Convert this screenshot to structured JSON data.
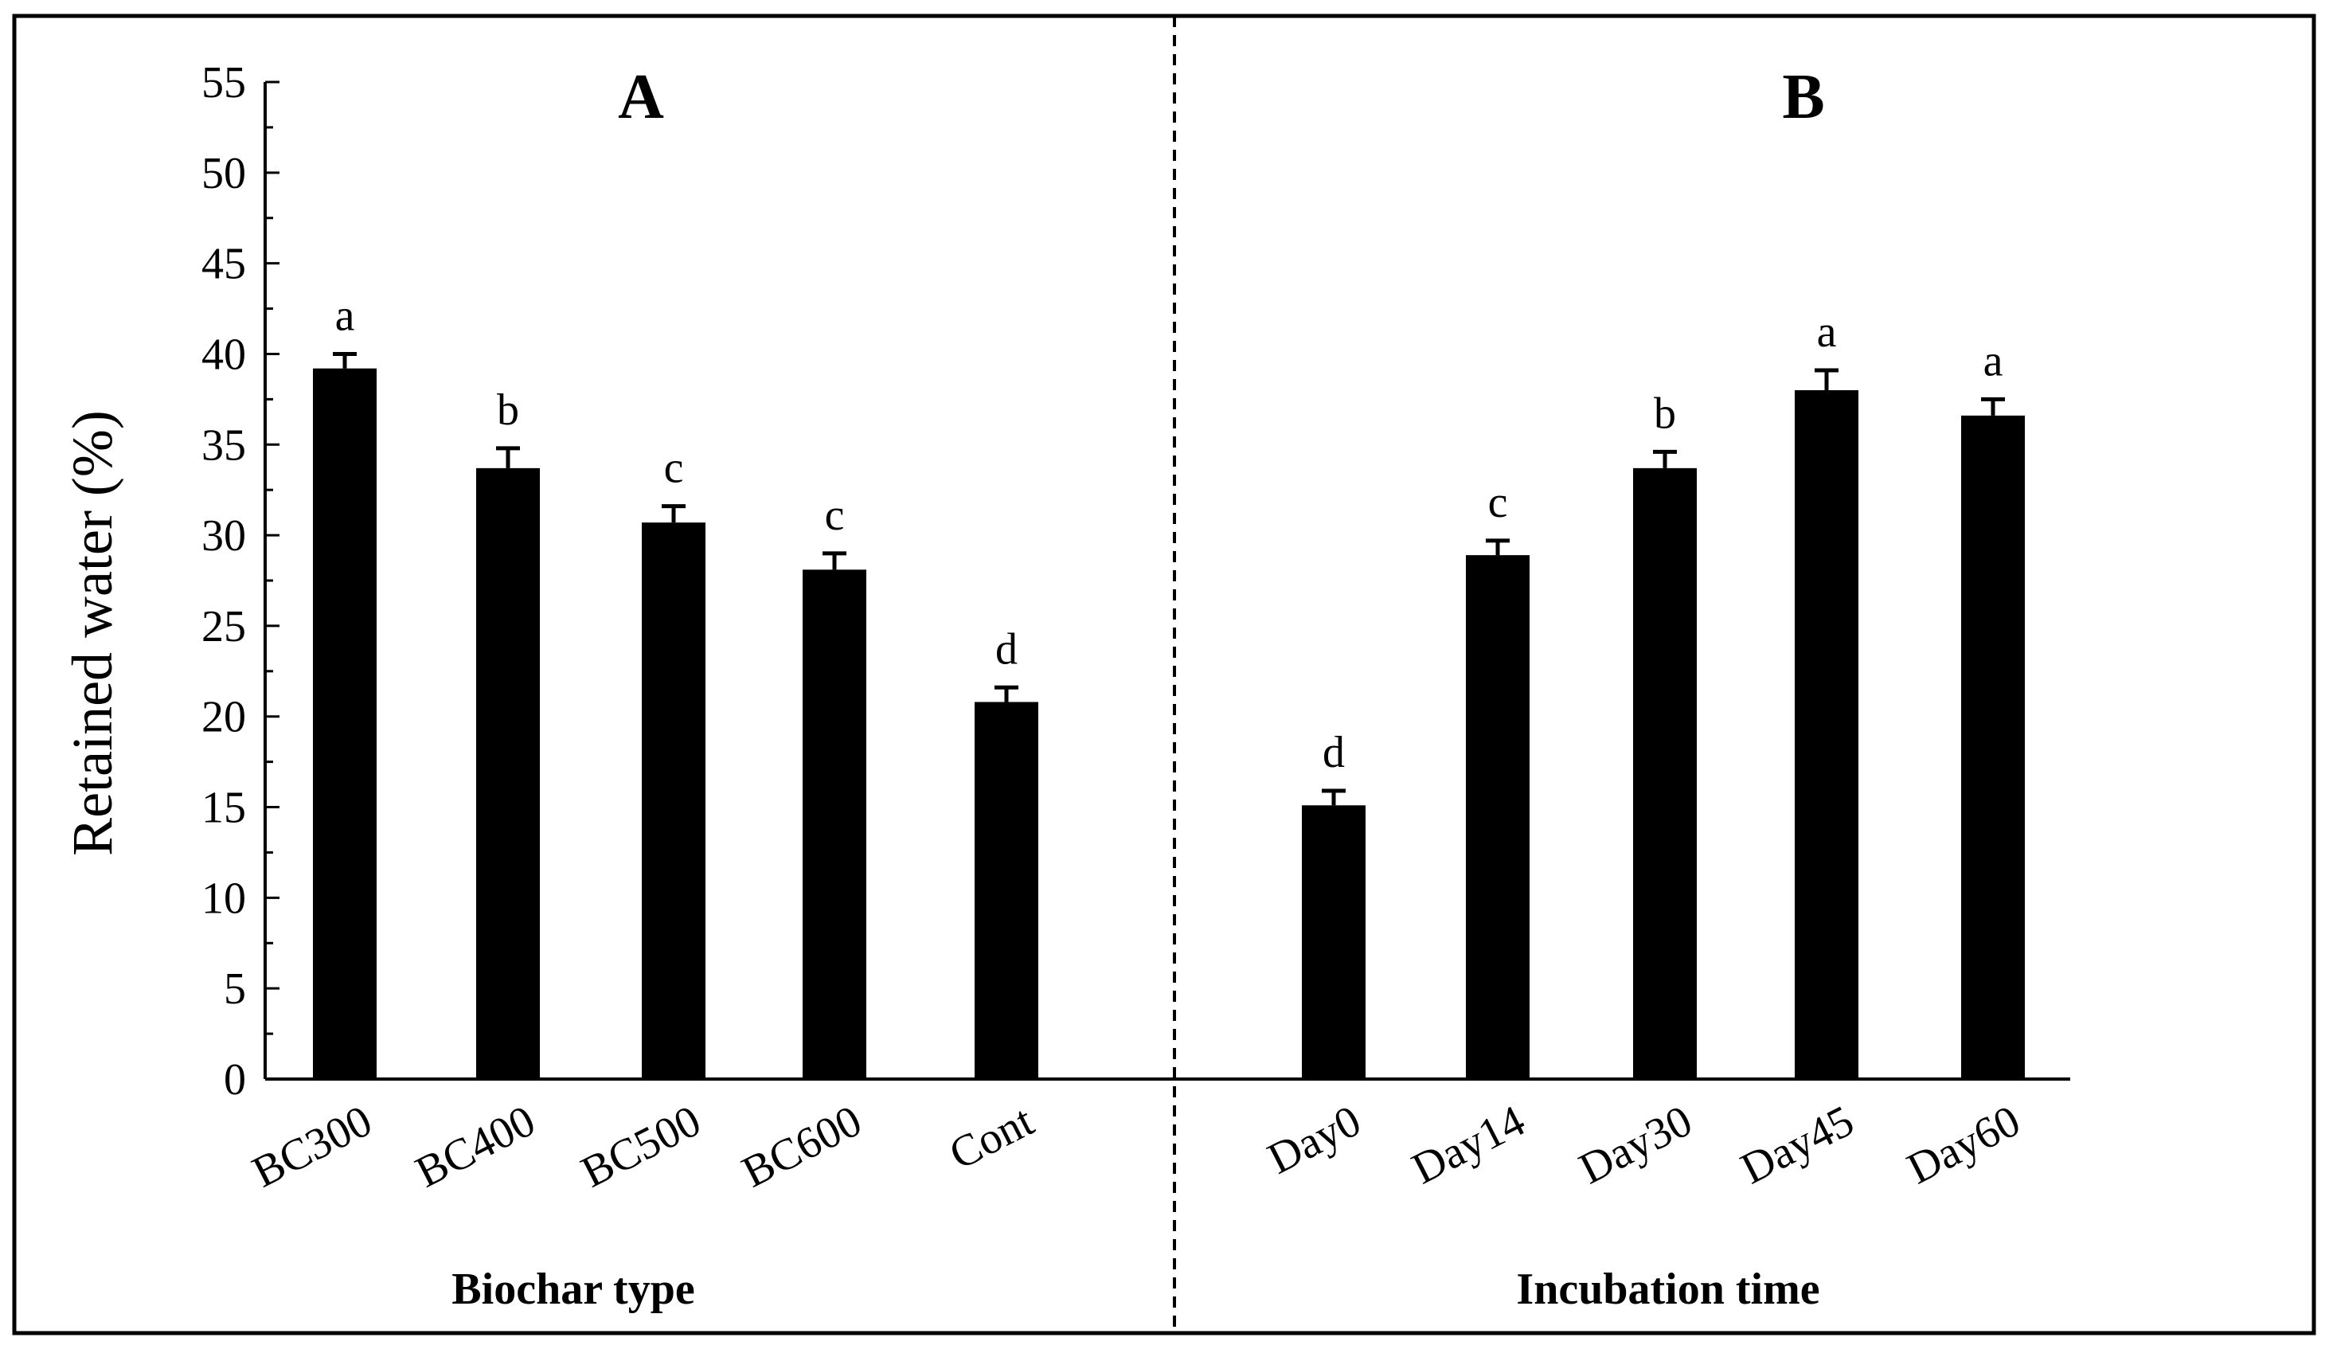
{
  "chart_data": {
    "type": "bar",
    "ylabel": "Retained water (%)",
    "ylim": [
      0,
      55
    ],
    "yticks": [
      0,
      5,
      10,
      15,
      20,
      25,
      30,
      35,
      40,
      45,
      50,
      55
    ],
    "colors": {
      "bar": "#000000",
      "frame": "#000000",
      "background": "#ffffff"
    },
    "panels": [
      {
        "panel_label": "A",
        "xlabel": "Biochar type",
        "categories": [
          "BC300",
          "BC400",
          "BC500",
          "BC600",
          "Cont"
        ],
        "values": [
          39.2,
          33.7,
          30.7,
          28.1,
          20.8
        ],
        "errors": [
          0.8,
          1.1,
          0.9,
          0.9,
          0.8
        ],
        "significance": [
          "a",
          "b",
          "c",
          "c",
          "d"
        ]
      },
      {
        "panel_label": "B",
        "xlabel": "Incubation time",
        "categories": [
          "Day0",
          "Day14",
          "Day30",
          "Day45",
          "Day60"
        ],
        "values": [
          15.1,
          28.9,
          33.7,
          38.0,
          36.6
        ],
        "errors": [
          0.8,
          0.8,
          0.9,
          1.1,
          0.9
        ],
        "significance": [
          "d",
          "c",
          "b",
          "a",
          "a"
        ]
      }
    ]
  }
}
